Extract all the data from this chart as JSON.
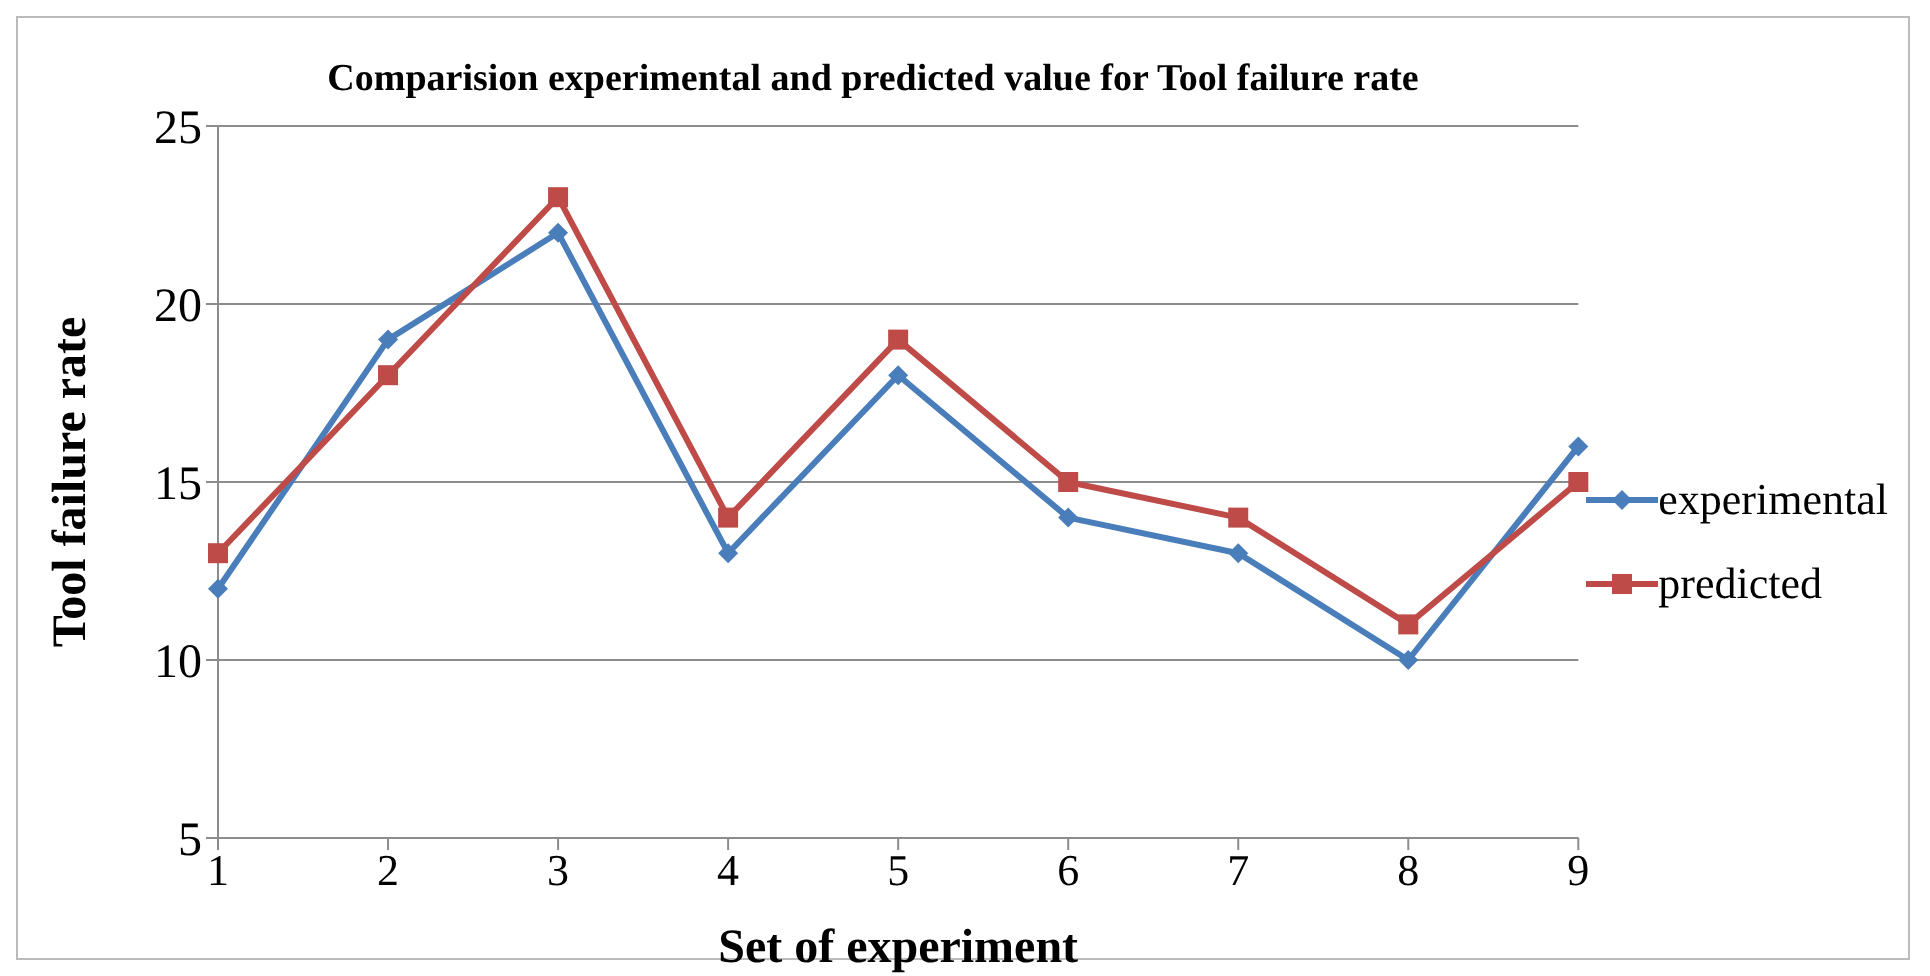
{
  "chart_data": {
    "type": "line",
    "title": "Comparision experimental and predicted value for Tool failure rate",
    "xlabel": "Set of experiment",
    "ylabel": "Tool failure rate",
    "categories": [
      "1",
      "2",
      "3",
      "4",
      "5",
      "6",
      "7",
      "8",
      "9"
    ],
    "series": [
      {
        "name": "experimental",
        "color": "#4a7ebb",
        "marker": "diamond",
        "values": [
          12,
          19,
          22,
          13,
          18,
          14,
          13,
          10,
          16
        ]
      },
      {
        "name": "predicted",
        "color": "#be4b48",
        "marker": "square",
        "values": [
          13,
          18,
          23,
          14,
          19,
          15,
          14,
          11,
          15
        ]
      }
    ],
    "ylim": [
      5,
      25
    ],
    "yticks": [
      5,
      10,
      15,
      20,
      25
    ],
    "grid": "y",
    "legend": "right",
    "line_style": "solid"
  }
}
